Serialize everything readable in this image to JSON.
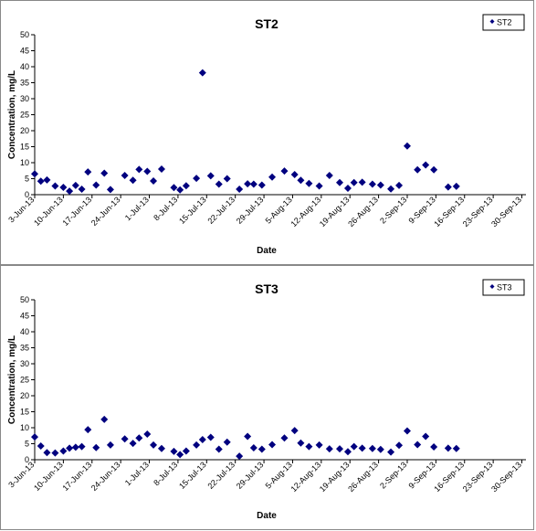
{
  "chart_data": [
    {
      "type": "scatter",
      "title": "ST2",
      "xlabel": "Date",
      "ylabel": "Concentration, mg/L",
      "ylim": [
        0,
        50
      ],
      "yticks": [
        0,
        5,
        10,
        15,
        20,
        25,
        30,
        35,
        40,
        45,
        50
      ],
      "x_tick_labels": [
        "3-Jun-13",
        "10-Jun-13",
        "17-Jun-13",
        "24-Jun-13",
        "1-Jul-13",
        "8-Jul-13",
        "15-Jul-13",
        "22-Jul-13",
        "29-Jul-13",
        "5-Aug-13",
        "12-Aug-13",
        "19-Aug-13",
        "26-Aug-13",
        "2-Sep-13",
        "9-Sep-13",
        "16-Sep-13",
        "23-Sep-13",
        "30-Sep-13"
      ],
      "x_range_days": [
        0,
        120
      ],
      "legend_position": "top-right",
      "grid": false,
      "marker_color": "#00007f",
      "series": [
        {
          "name": "ST2",
          "points": [
            [
              0,
              6.5
            ],
            [
              1.5,
              4.2
            ],
            [
              3,
              4.6
            ],
            [
              5,
              2.7
            ],
            [
              7,
              2.3
            ],
            [
              8.5,
              1.1
            ],
            [
              10,
              2.9
            ],
            [
              11.5,
              1.7
            ],
            [
              13,
              7.1
            ],
            [
              15,
              3
            ],
            [
              17,
              6.7
            ],
            [
              18.5,
              1.6
            ],
            [
              22,
              6
            ],
            [
              24,
              4.5
            ],
            [
              25.5,
              7.9
            ],
            [
              27.5,
              7.3
            ],
            [
              29,
              4.3
            ],
            [
              31,
              8
            ],
            [
              34,
              2.2
            ],
            [
              35.5,
              1.5
            ],
            [
              37,
              2.8
            ],
            [
              39.5,
              5.1
            ],
            [
              41,
              38.1
            ],
            [
              43,
              5.9
            ],
            [
              45,
              3.3
            ],
            [
              47,
              5
            ],
            [
              50,
              1.7
            ],
            [
              52,
              3.4
            ],
            [
              53.5,
              3.3
            ],
            [
              55.5,
              3
            ],
            [
              58,
              5.5
            ],
            [
              61,
              7.4
            ],
            [
              63.5,
              6.3
            ],
            [
              65,
              4.5
            ],
            [
              67,
              3.5
            ],
            [
              69.5,
              2.7
            ],
            [
              72,
              6
            ],
            [
              74.5,
              3.8
            ],
            [
              76.5,
              2
            ],
            [
              78,
              3.8
            ],
            [
              80,
              3.9
            ],
            [
              82.5,
              3.3
            ],
            [
              84.5,
              3
            ],
            [
              87,
              1.8
            ],
            [
              89,
              2.9
            ],
            [
              91,
              15.2
            ],
            [
              93.5,
              7.8
            ],
            [
              95.5,
              9.3
            ],
            [
              97.5,
              7.8
            ],
            [
              101,
              2.4
            ],
            [
              103,
              2.6
            ]
          ]
        }
      ]
    },
    {
      "type": "scatter",
      "title": "ST3",
      "xlabel": "Date",
      "ylabel": "Concentration, mg/L",
      "ylim": [
        0,
        50
      ],
      "yticks": [
        0,
        5,
        10,
        15,
        20,
        25,
        30,
        35,
        40,
        45,
        50
      ],
      "x_tick_labels": [
        "3-Jun-13",
        "10-Jun-13",
        "17-Jun-13",
        "24-Jun-13",
        "1-Jul-13",
        "8-Jul-13",
        "15-Jul-13",
        "22-Jul-13",
        "29-Jul-13",
        "5-Aug-13",
        "12-Aug-13",
        "19-Aug-13",
        "26-Aug-13",
        "2-Sep-13",
        "9-Sep-13",
        "16-Sep-13",
        "23-Sep-13",
        "30-Sep-13"
      ],
      "x_range_days": [
        0,
        120
      ],
      "legend_position": "top-right",
      "grid": false,
      "marker_color": "#00007f",
      "series": [
        {
          "name": "ST3",
          "points": [
            [
              0,
              7.1
            ],
            [
              1.5,
              4.3
            ],
            [
              3,
              2.2
            ],
            [
              5,
              2.1
            ],
            [
              7,
              2.7
            ],
            [
              8.5,
              3.6
            ],
            [
              10,
              3.9
            ],
            [
              11.5,
              4.1
            ],
            [
              13,
              9.4
            ],
            [
              15,
              3.8
            ],
            [
              17,
              12.6
            ],
            [
              18.5,
              4.6
            ],
            [
              22,
              6.5
            ],
            [
              24,
              5.1
            ],
            [
              25.5,
              6.8
            ],
            [
              27.5,
              8
            ],
            [
              29,
              4.6
            ],
            [
              31,
              3.5
            ],
            [
              34,
              2.6
            ],
            [
              35.5,
              1.6
            ],
            [
              37,
              2.7
            ],
            [
              39.5,
              4.6
            ],
            [
              41,
              6.3
            ],
            [
              43,
              7
            ],
            [
              45,
              3.3
            ],
            [
              47,
              5.5
            ],
            [
              50,
              1.1
            ],
            [
              52,
              7.3
            ],
            [
              53.5,
              3.7
            ],
            [
              55.5,
              3.3
            ],
            [
              58,
              4.7
            ],
            [
              61,
              6.8
            ],
            [
              63.5,
              9.1
            ],
            [
              65,
              5.2
            ],
            [
              67,
              4.1
            ],
            [
              69.5,
              4.6
            ],
            [
              72,
              3.4
            ],
            [
              74.5,
              3.4
            ],
            [
              76.5,
              2.5
            ],
            [
              78,
              4.1
            ],
            [
              80,
              3.6
            ],
            [
              82.5,
              3.5
            ],
            [
              84.5,
              3.2
            ],
            [
              87,
              2.4
            ],
            [
              89,
              4.5
            ],
            [
              91,
              9
            ],
            [
              93.5,
              4.7
            ],
            [
              95.5,
              7.3
            ],
            [
              97.5,
              4
            ],
            [
              101,
              3.6
            ],
            [
              103,
              3.5
            ]
          ]
        }
      ]
    }
  ]
}
